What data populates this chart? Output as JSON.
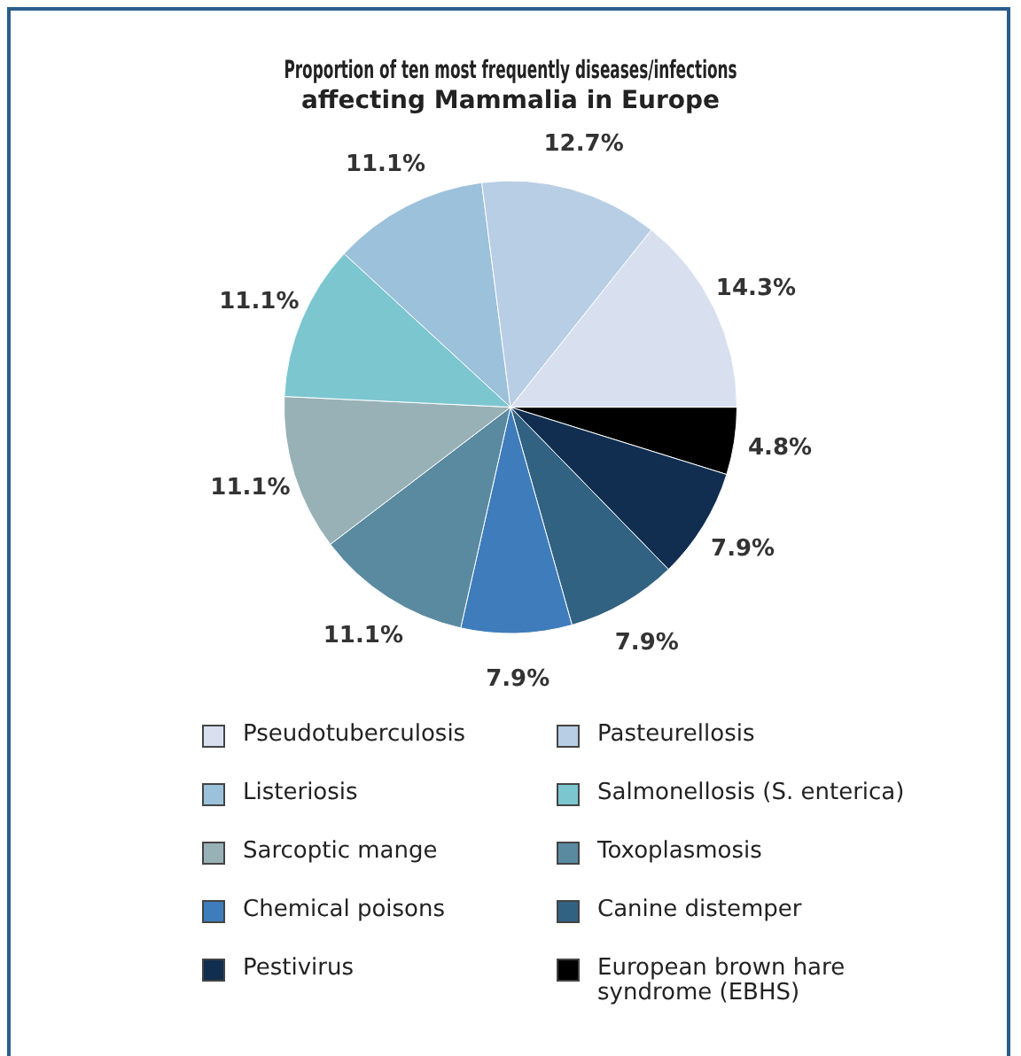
{
  "chart_data": {
    "type": "pie",
    "title": [
      "Proportion of ten most frequently diseases/infections",
      "affecting Mammalia in Europe"
    ],
    "categories": [
      "Pseudotuberculosis",
      "Pasteurellosis",
      "Listeriosis",
      "Salmonellosis (S. enterica)",
      "Sarcoptic mange",
      "Toxoplasmosis",
      "Chemical poisons",
      "Canine distemper",
      "Pestivirus",
      "European brown hare syndrome (EBHS)"
    ],
    "values": [
      14.3,
      12.7,
      11.1,
      11.1,
      11.1,
      11.1,
      7.9,
      7.9,
      7.9,
      4.8
    ],
    "colors": [
      "#d8e0f0",
      "#b8cee4",
      "#9cc1da",
      "#7cc6d0",
      "#98b1b6",
      "#5a8aa0",
      "#3e7cbc",
      "#326282",
      "#112e50",
      "#000000"
    ],
    "value_labels": [
      "14.3%",
      "12.7%",
      "11.1%",
      "11.1%",
      "11.1%",
      "11.1%",
      "7.9%",
      "7.9%",
      "7.9%",
      "4.8%"
    ],
    "legend": "bottom"
  }
}
